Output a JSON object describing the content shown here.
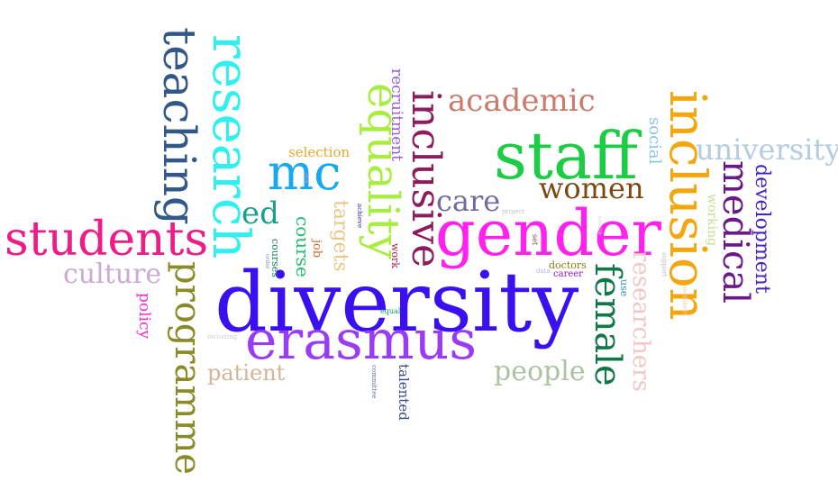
{
  "words": [
    {
      "text": "diversity",
      "color": "#3a10f0"
    },
    {
      "text": "gender",
      "color": "#ff22ee"
    },
    {
      "text": "staff",
      "color": "#1ccc44"
    },
    {
      "text": "erasmus",
      "color": "#9a3cf6"
    },
    {
      "text": "inclusion",
      "color": "#f4a60c"
    },
    {
      "text": "research",
      "color": "#2ef0f0"
    },
    {
      "text": "equality",
      "color": "#a8ee40"
    },
    {
      "text": "teaching",
      "color": "#325888"
    },
    {
      "text": "students",
      "color": "#ee1c88"
    },
    {
      "text": "programme",
      "color": "#8a8a28"
    },
    {
      "text": "inclusive",
      "color": "#8c1c5e"
    },
    {
      "text": "mc",
      "color": "#18a8f0"
    },
    {
      "text": "female",
      "color": "#107848"
    },
    {
      "text": "medical",
      "color": "#6a188a"
    },
    {
      "text": "women",
      "color": "#7a4810"
    },
    {
      "text": "academic",
      "color": "#cc7a6a"
    },
    {
      "text": "university",
      "color": "#b4cce0"
    },
    {
      "text": "care",
      "color": "#726aa0"
    },
    {
      "text": "culture",
      "color": "#ccaad6"
    },
    {
      "text": "people",
      "color": "#aac4a0"
    },
    {
      "text": "ed",
      "color": "#1aa088"
    },
    {
      "text": "researchers",
      "color": "#f4c6c6"
    },
    {
      "text": "patient",
      "color": "#d4b498"
    },
    {
      "text": "development",
      "color": "#4422cc"
    },
    {
      "text": "targets",
      "color": "#e6c888"
    },
    {
      "text": "recruitment",
      "color": "#9a60d4"
    },
    {
      "text": "social",
      "color": "#88c8e0"
    },
    {
      "text": "course",
      "color": "#20c070"
    },
    {
      "text": "selection",
      "color": "#e6a830"
    },
    {
      "text": "working",
      "color": "#c4e090"
    },
    {
      "text": "policy",
      "color": "#ff28c8"
    },
    {
      "text": "talented",
      "color": "#344890"
    },
    {
      "text": "job",
      "color": "#d06420"
    },
    {
      "text": "work",
      "color": "#b02050"
    },
    {
      "text": "courses",
      "color": "#208060"
    },
    {
      "text": "doctors",
      "color": "#8a7a10"
    },
    {
      "text": "career",
      "color": "#8a1ab0"
    },
    {
      "text": "use",
      "color": "#2890c8"
    },
    {
      "text": "equal",
      "color": "#18a060"
    },
    {
      "text": "including",
      "color": "#cccccc"
    },
    {
      "text": "committee",
      "color": "#6070a8"
    },
    {
      "text": "data",
      "color": "#a8b8e0"
    },
    {
      "text": "project",
      "color": "#c0c0c0"
    },
    {
      "text": "set",
      "color": "#805040"
    },
    {
      "text": "support",
      "color": "#d0b8d0"
    },
    {
      "text": "members",
      "color": "#f0d0b0"
    },
    {
      "text": "achieve",
      "color": "#302890"
    },
    {
      "text": "sex",
      "color": "#c8a0c8"
    },
    {
      "text": "order",
      "color": "#8090b0"
    },
    {
      "text": "ensure",
      "color": "#d8d8d8"
    }
  ]
}
